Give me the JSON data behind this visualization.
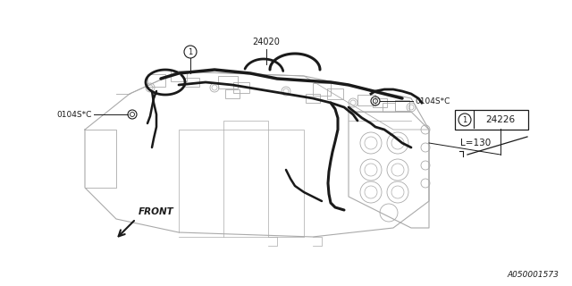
{
  "bg_color": "#ffffff",
  "line_color": "#1a1a1a",
  "gray_color": "#888888",
  "light_gray": "#aaaaaa",
  "label_24020": "24020",
  "label_24226": "24226",
  "label_0104S_C_left": "0104S*C",
  "label_0104S_C_right": "0104S*C",
  "label_front": "FRONT",
  "label_L130": "L=130",
  "label_A050001573": "A050001573",
  "fig_width": 6.4,
  "fig_height": 3.2,
  "dpi": 100
}
